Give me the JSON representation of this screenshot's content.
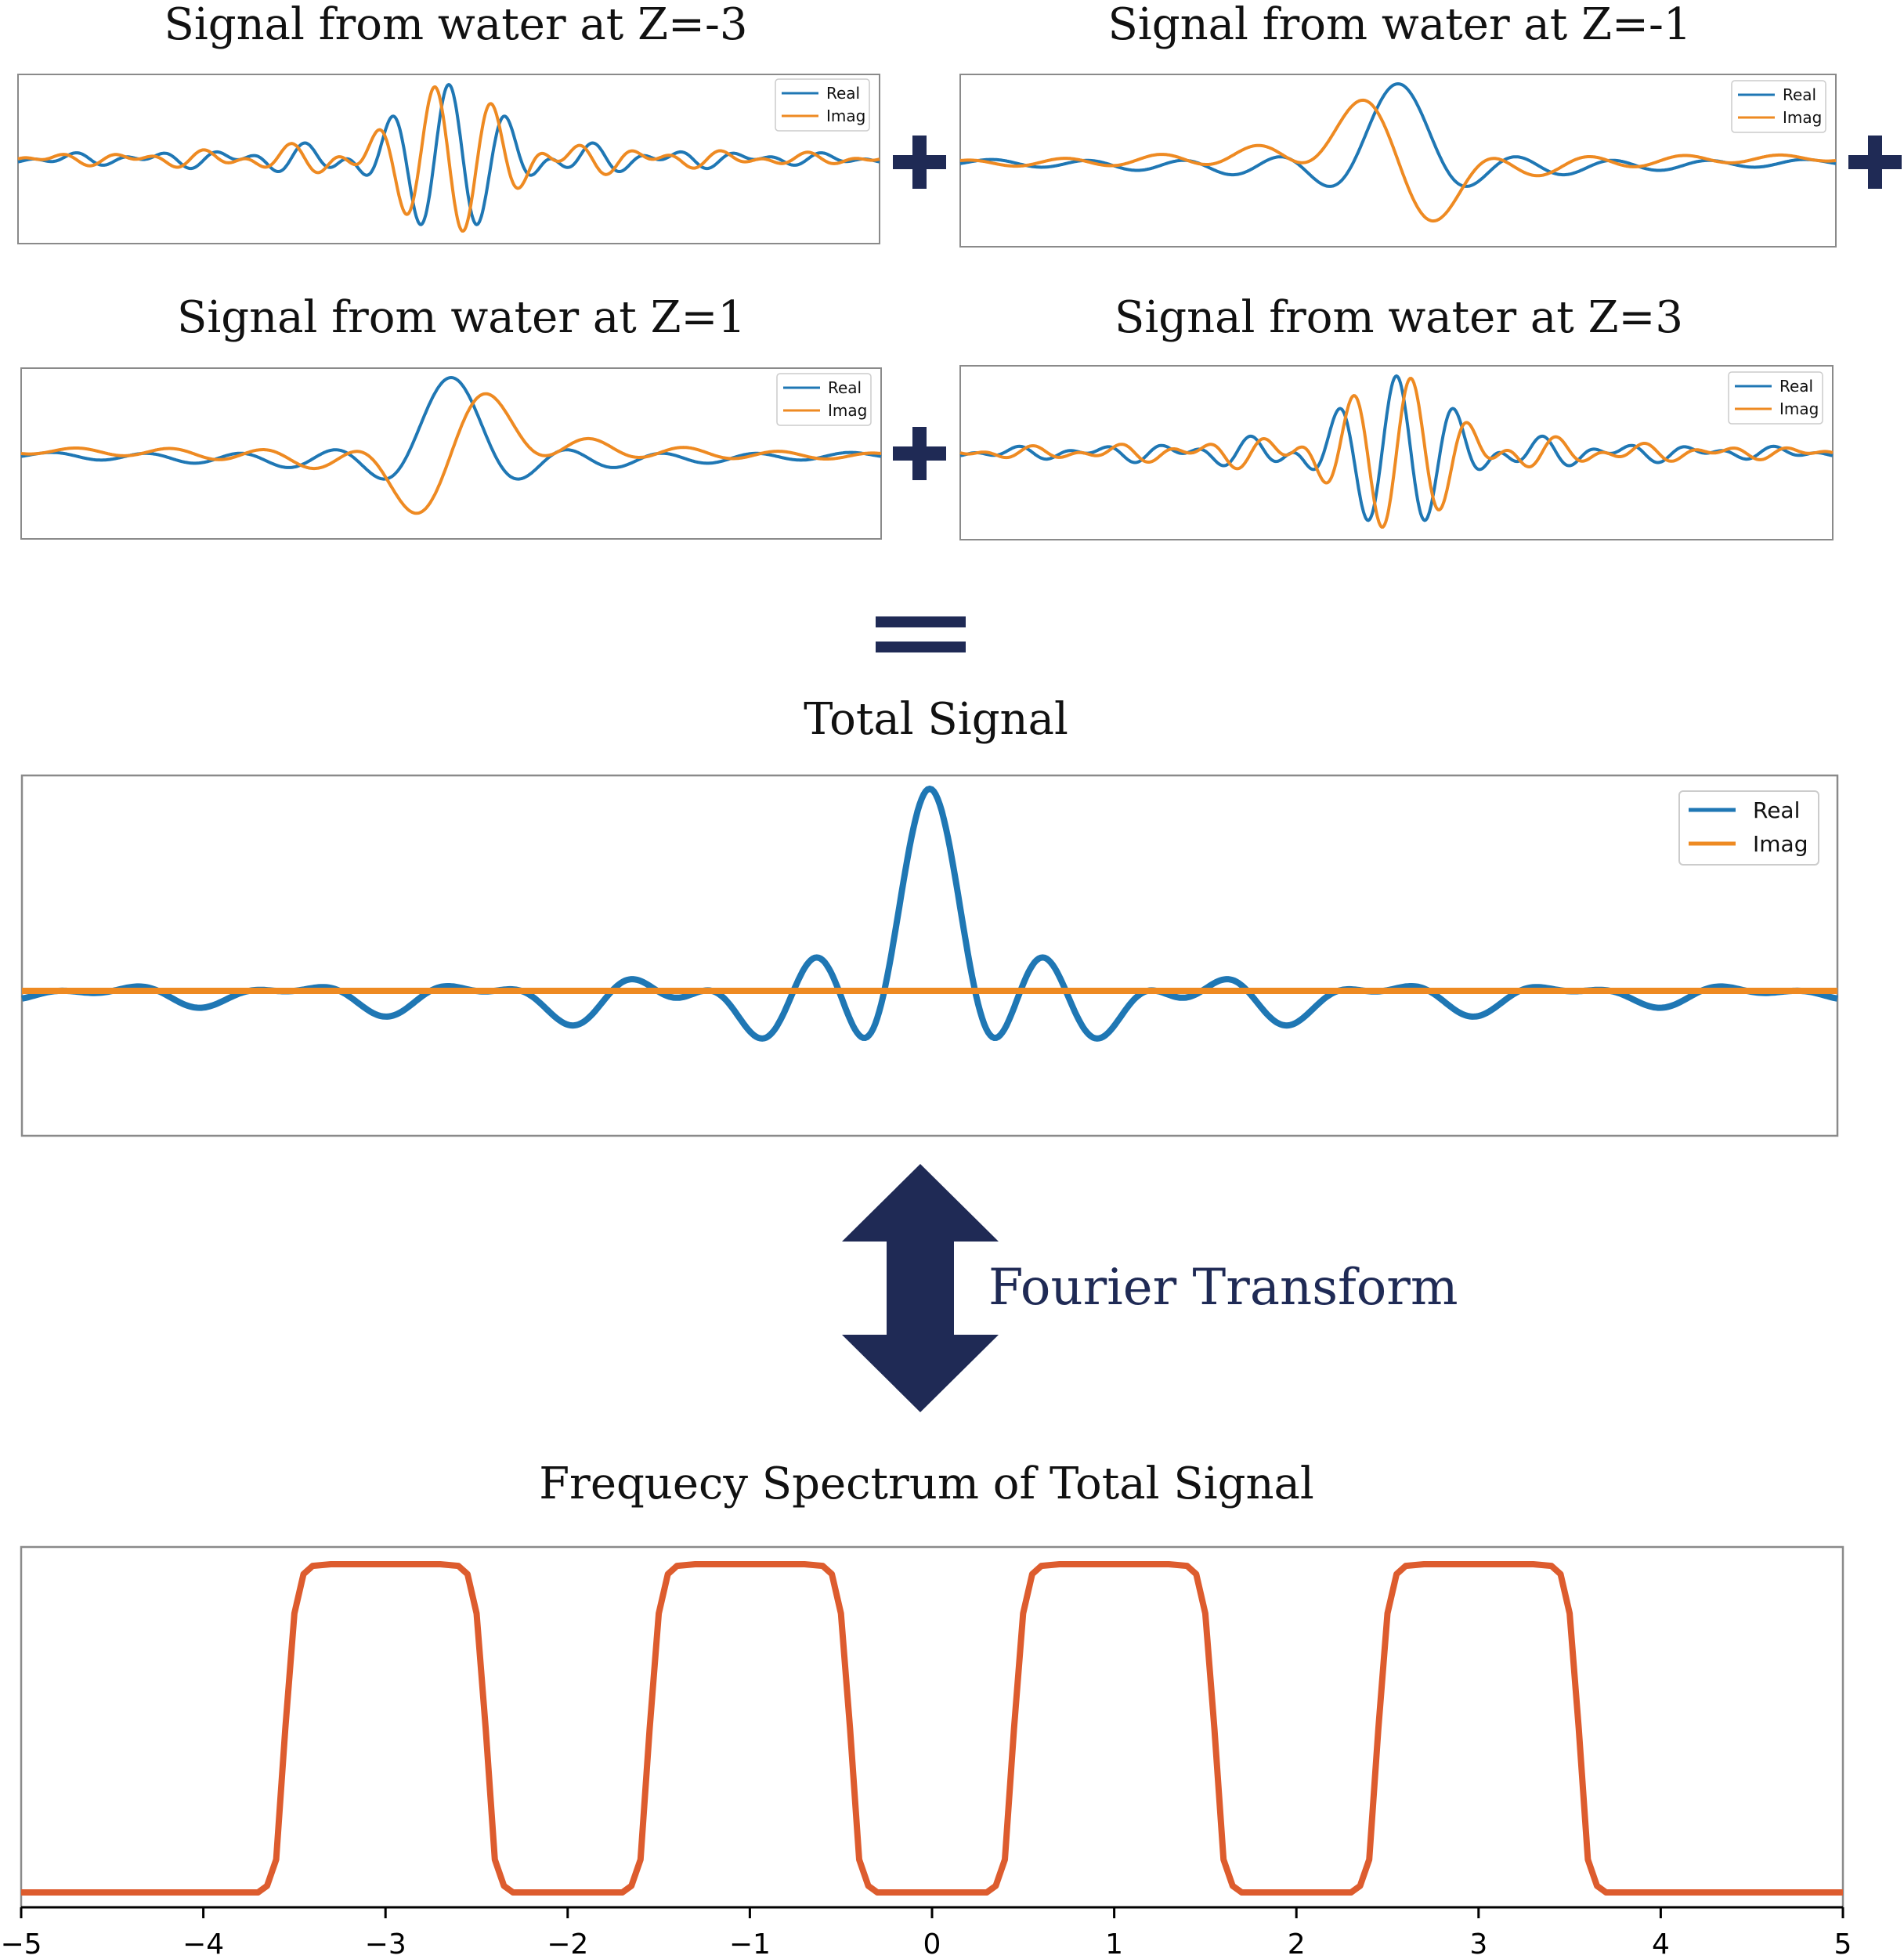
{
  "colors": {
    "real": "#1f77b4",
    "imag": "#ee8a22",
    "spectrum": "#dd5c2e",
    "operator": "#1f2a55",
    "frame": "#8a8a8a"
  },
  "operators": {
    "plus": "+",
    "equals": "="
  },
  "panels": {
    "z_neg3": {
      "title": "Signal from water at Z=-3",
      "legend": [
        "Real",
        "Imag"
      ]
    },
    "z_neg1": {
      "title": "Signal from water at Z=-1",
      "legend": [
        "Real",
        "Imag"
      ]
    },
    "z_pos1": {
      "title": "Signal from water at Z=1",
      "legend": [
        "Real",
        "Imag"
      ]
    },
    "z_pos3": {
      "title": "Signal from water at Z=3",
      "legend": [
        "Real",
        "Imag"
      ]
    },
    "total": {
      "title": "Total Signal",
      "legend": [
        "Real",
        "Imag"
      ]
    },
    "spectrum": {
      "title": "Frequecy Spectrum of Total Signal"
    }
  },
  "transform_label": "Fourier Transform",
  "chart_data": [
    {
      "type": "line",
      "title": "Signal from water at Z=-3",
      "frequency": -3,
      "x_range": [
        -5,
        5
      ],
      "series": [
        {
          "name": "Real",
          "color": "#1f77b4"
        },
        {
          "name": "Imag",
          "color": "#ee8a22"
        }
      ]
    },
    {
      "type": "line",
      "title": "Signal from water at Z=-1",
      "frequency": -1,
      "x_range": [
        -5,
        5
      ],
      "series": [
        {
          "name": "Real",
          "color": "#1f77b4"
        },
        {
          "name": "Imag",
          "color": "#ee8a22"
        }
      ]
    },
    {
      "type": "line",
      "title": "Signal from water at Z=1",
      "frequency": 1,
      "x_range": [
        -5,
        5
      ],
      "series": [
        {
          "name": "Real",
          "color": "#1f77b4"
        },
        {
          "name": "Imag",
          "color": "#ee8a22"
        }
      ]
    },
    {
      "type": "line",
      "title": "Signal from water at Z=3",
      "frequency": 3,
      "x_range": [
        -5,
        5
      ],
      "series": [
        {
          "name": "Real",
          "color": "#1f77b4"
        },
        {
          "name": "Imag",
          "color": "#ee8a22"
        }
      ]
    },
    {
      "type": "line",
      "title": "Total Signal",
      "x_range": [
        -5,
        5
      ],
      "series": [
        {
          "name": "Real",
          "color": "#1f77b4"
        },
        {
          "name": "Imag",
          "color": "#ee8a22"
        }
      ]
    },
    {
      "type": "line",
      "title": "Frequecy Spectrum of Total Signal",
      "xlim": [
        -5,
        5
      ],
      "ylim": [
        0,
        1
      ],
      "x_ticks": [
        -5,
        -4,
        -3,
        -2,
        -1,
        0,
        1,
        2,
        3,
        4,
        5
      ],
      "x_tick_labels": [
        "−5",
        "−4",
        "−3",
        "−2",
        "−1",
        "0",
        "1",
        "2",
        "3",
        "4",
        "5"
      ],
      "series": [
        {
          "color": "#dd5c2e",
          "x": [
            -5,
            -3.7,
            -3.65,
            -3.6,
            -3.55,
            -3.5,
            -3.45,
            -3.4,
            -3.3,
            -2.7,
            -2.6,
            -2.55,
            -2.5,
            -2.45,
            -2.4,
            -2.35,
            -2.3,
            -1.7,
            -1.65,
            -1.6,
            -1.55,
            -1.5,
            -1.45,
            -1.4,
            -1.3,
            -0.7,
            -0.6,
            -0.55,
            -0.5,
            -0.45,
            -0.4,
            -0.35,
            -0.3,
            0.3,
            0.35,
            0.4,
            0.45,
            0.5,
            0.55,
            0.6,
            0.7,
            1.3,
            1.4,
            1.45,
            1.5,
            1.55,
            1.6,
            1.65,
            1.7,
            2.3,
            2.35,
            2.4,
            2.45,
            2.5,
            2.55,
            2.6,
            2.7,
            3.3,
            3.4,
            3.45,
            3.5,
            3.55,
            3.6,
            3.65,
            3.7,
            5
          ],
          "y": [
            0,
            0,
            0.02,
            0.1,
            0.5,
            0.85,
            0.97,
            0.995,
            1,
            1,
            0.995,
            0.97,
            0.85,
            0.5,
            0.1,
            0.02,
            0,
            0,
            0.02,
            0.1,
            0.5,
            0.85,
            0.97,
            0.995,
            1,
            1,
            0.995,
            0.97,
            0.85,
            0.5,
            0.1,
            0.02,
            0,
            0,
            0.02,
            0.1,
            0.5,
            0.85,
            0.97,
            0.995,
            1,
            1,
            0.995,
            0.97,
            0.85,
            0.5,
            0.1,
            0.02,
            0,
            0,
            0.02,
            0.1,
            0.5,
            0.85,
            0.97,
            0.995,
            1,
            1,
            0.995,
            0.97,
            0.85,
            0.5,
            0.1,
            0.02,
            0,
            0
          ]
        }
      ]
    }
  ]
}
